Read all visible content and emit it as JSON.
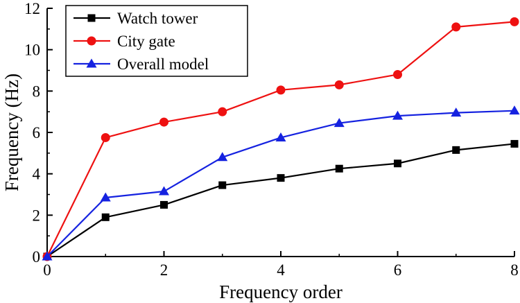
{
  "chart_data": {
    "type": "line",
    "title": "",
    "xlabel": "Frequency order",
    "ylabel": "Frequency (Hz)",
    "xlim": [
      0,
      8
    ],
    "ylim": [
      0,
      12
    ],
    "x_major_ticks": [
      0,
      2,
      4,
      6,
      8
    ],
    "x_minor_ticks": [
      1,
      3,
      5,
      7
    ],
    "y_major_ticks": [
      0,
      2,
      4,
      6,
      8,
      10,
      12
    ],
    "y_minor_ticks": [
      1,
      3,
      5,
      7,
      9,
      11
    ],
    "grid": false,
    "legend_position": "top-left",
    "x": [
      0,
      1,
      2,
      3,
      4,
      5,
      6,
      7,
      8
    ],
    "series": [
      {
        "name": "Watch tower",
        "color": "#000000",
        "marker": "square",
        "values": [
          0,
          1.9,
          2.5,
          3.45,
          3.8,
          4.25,
          4.5,
          5.15,
          5.45
        ]
      },
      {
        "name": "City gate",
        "color": "#ee1111",
        "marker": "circle",
        "values": [
          0,
          5.75,
          6.5,
          7.0,
          8.05,
          8.3,
          8.8,
          11.1,
          11.35
        ]
      },
      {
        "name": "Overall model",
        "color": "#1522e0",
        "marker": "triangle",
        "values": [
          0,
          2.85,
          3.15,
          4.8,
          5.75,
          6.45,
          6.8,
          6.95,
          7.05
        ]
      }
    ],
    "axis_color": "#000000"
  }
}
